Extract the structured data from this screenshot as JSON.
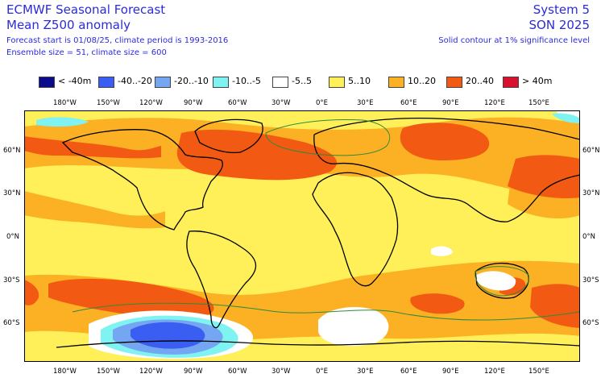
{
  "header": {
    "title_line1": "ECMWF Seasonal Forecast",
    "title_line2": "Mean Z500 anomaly",
    "info_line1": "Forecast start is 01/08/25, climate period is 1993-2016",
    "info_line2": "Ensemble size = 51, climate size = 600",
    "system": "System 5",
    "season": "SON 2025",
    "note": "Solid contour at 1% significance level"
  },
  "legend": [
    {
      "label": "< -40m",
      "color": "#0b0b8c"
    },
    {
      "label": "-40..-20",
      "color": "#3a5ef2"
    },
    {
      "label": "-20..-10",
      "color": "#74a6f2"
    },
    {
      "label": "-10..-5",
      "color": "#7ff2f2"
    },
    {
      "label": "-5..5",
      "color": "#ffffff"
    },
    {
      "label": "5..10",
      "color": "#fff05a"
    },
    {
      "label": "10..20",
      "color": "#fbb123"
    },
    {
      "label": "20..40",
      "color": "#f25a14"
    },
    {
      "label": "> 40m",
      "color": "#d9112e"
    }
  ],
  "lon_labels": [
    "180°W",
    "150°W",
    "120°W",
    "90°W",
    "60°W",
    "30°W",
    "0°E",
    "30°E",
    "60°E",
    "90°E",
    "120°E",
    "150°E"
  ],
  "lat_labels": [
    "60°N",
    "30°N",
    "0°N",
    "30°S",
    "60°S"
  ]
}
